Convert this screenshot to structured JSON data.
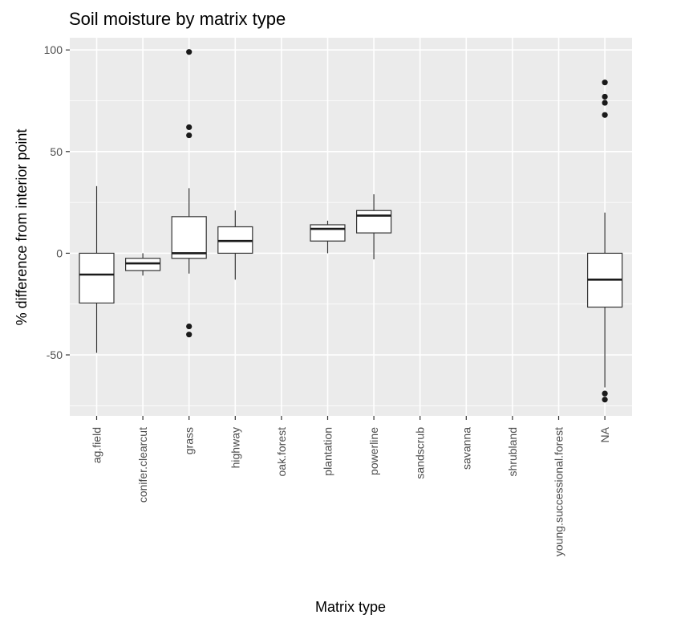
{
  "chart_data": {
    "type": "boxplot",
    "title": "Soil moisture by matrix type",
    "xlabel": "Matrix type",
    "ylabel": "% difference from interior point",
    "ylim": [
      -80,
      106
    ],
    "yticks": [
      -50,
      0,
      50,
      100
    ],
    "grid": true,
    "categories": [
      "ag.field",
      "conifer.clearcut",
      "grass",
      "highway",
      "oak.forest",
      "plantation",
      "powerline",
      "sandscrub",
      "savanna",
      "shrubland",
      "young.successional.forest",
      "NA"
    ],
    "boxes": [
      {
        "category": "ag.field",
        "min": -49,
        "q1": -24.5,
        "median": -10.5,
        "q3": 0,
        "max": 33,
        "outliers": []
      },
      {
        "category": "conifer.clearcut",
        "min": -11,
        "q1": -8.5,
        "median": -5,
        "q3": -2.5,
        "max": 0,
        "outliers": []
      },
      {
        "category": "grass",
        "min": -10,
        "q1": -2.5,
        "median": 0,
        "q3": 18,
        "max": 32,
        "outliers": [
          99,
          62,
          58,
          -36,
          -40
        ]
      },
      {
        "category": "highway",
        "min": -13,
        "q1": 0,
        "median": 6,
        "q3": 13,
        "max": 21,
        "outliers": []
      },
      {
        "category": "oak.forest",
        "empty": true
      },
      {
        "category": "plantation",
        "min": 0,
        "q1": 6,
        "median": 12,
        "q3": 14,
        "max": 16,
        "outliers": []
      },
      {
        "category": "powerline",
        "min": -3,
        "q1": 10,
        "median": 18.5,
        "q3": 21,
        "max": 29,
        "outliers": []
      },
      {
        "category": "sandscrub",
        "empty": true
      },
      {
        "category": "savanna",
        "empty": true
      },
      {
        "category": "shrubland",
        "empty": true
      },
      {
        "category": "young.successional.forest",
        "empty": true
      },
      {
        "category": "NA",
        "min": -66,
        "q1": -26.5,
        "median": -13,
        "q3": 0,
        "max": 20,
        "outliers": [
          84,
          77,
          74,
          68,
          -69,
          -72
        ]
      }
    ]
  }
}
